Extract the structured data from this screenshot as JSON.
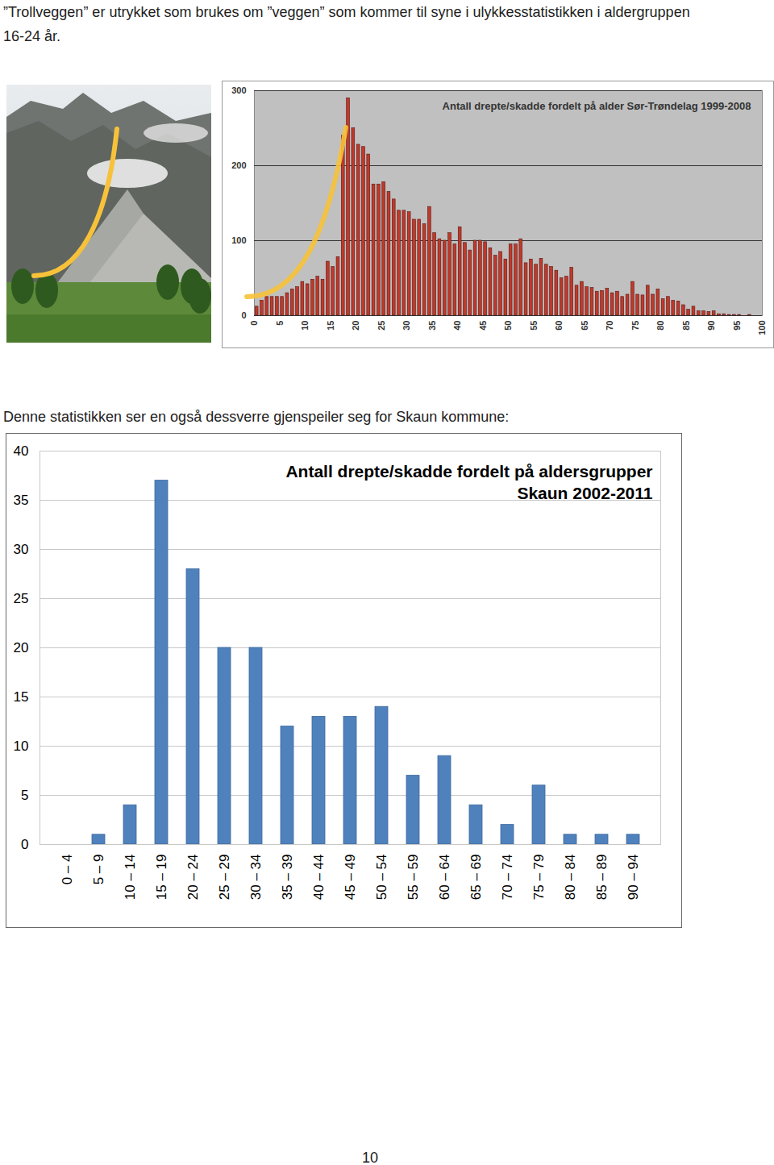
{
  "document": {
    "intro": "”Trollveggen” er utrykket som brukes om ”veggen” som kommer til syne i ulykkesstatistikken i aldergruppen 16-24 år.",
    "caption": "Denne statistikken ser en også dessverre gjenspeiler seg for Skaun kommune:",
    "page_number": "10"
  },
  "chart_data": [
    {
      "type": "bar",
      "title": "Antall drepte/skadde fordelt på alder Sør-Trøndelag 1999-2008",
      "x": [
        0,
        1,
        2,
        3,
        4,
        5,
        6,
        7,
        8,
        9,
        10,
        11,
        12,
        13,
        14,
        15,
        16,
        17,
        18,
        19,
        20,
        21,
        22,
        23,
        24,
        25,
        26,
        27,
        28,
        29,
        30,
        31,
        32,
        33,
        34,
        35,
        36,
        37,
        38,
        39,
        40,
        41,
        42,
        43,
        44,
        45,
        46,
        47,
        48,
        49,
        50,
        51,
        52,
        53,
        54,
        55,
        56,
        57,
        58,
        59,
        60,
        61,
        62,
        63,
        64,
        65,
        66,
        67,
        68,
        69,
        70,
        71,
        72,
        73,
        74,
        75,
        76,
        77,
        78,
        79,
        80,
        81,
        82,
        83,
        84,
        85,
        86,
        87,
        88,
        89,
        90,
        91,
        92,
        93,
        94,
        95,
        96,
        97
      ],
      "values": [
        12,
        20,
        25,
        25,
        25,
        25,
        30,
        35,
        38,
        45,
        42,
        48,
        52,
        48,
        72,
        65,
        78,
        240,
        290,
        250,
        228,
        225,
        215,
        175,
        175,
        178,
        165,
        155,
        140,
        140,
        138,
        128,
        128,
        122,
        145,
        110,
        102,
        100,
        110,
        95,
        118,
        97,
        87,
        100,
        100,
        98,
        90,
        80,
        85,
        75,
        95,
        95,
        102,
        70,
        75,
        68,
        76,
        68,
        65,
        60,
        50,
        52,
        64,
        40,
        45,
        38,
        37,
        32,
        33,
        36,
        30,
        32,
        25,
        28,
        45,
        28,
        27,
        40,
        28,
        35,
        22,
        25,
        20,
        19,
        14,
        8,
        12,
        6,
        6,
        5,
        6,
        2,
        2,
        1,
        1,
        1,
        0,
        1
      ],
      "color": "#c0392b",
      "xlim": [
        0,
        100
      ],
      "xticks": [
        0,
        5,
        10,
        15,
        20,
        25,
        30,
        35,
        40,
        45,
        50,
        55,
        60,
        65,
        70,
        75,
        80,
        85,
        90,
        95,
        100
      ],
      "ylim": [
        0,
        300
      ],
      "yticks": [
        0,
        100,
        200,
        300
      ],
      "grid": true
    },
    {
      "type": "bar",
      "title": "Antall drepte/skadde fordelt på aldersgrupper",
      "subtitle": "Skaun 2002-2011",
      "categories": [
        "0 – 4",
        "5 – 9",
        "10 – 14",
        "15 – 19",
        "20 – 24",
        "25 – 29",
        "30 – 34",
        "35 – 39",
        "40 – 44",
        "45 – 49",
        "50 – 54",
        "55 – 59",
        "60 – 64",
        "65 – 69",
        "70 – 74",
        "75 – 79",
        "80 – 84",
        "85 – 89",
        "90 – 94"
      ],
      "values": [
        0,
        1,
        4,
        37,
        28,
        20,
        20,
        12,
        13,
        13,
        14,
        7,
        9,
        4,
        2,
        6,
        1,
        1,
        1
      ],
      "color": "#4f81bd",
      "ylim": [
        0,
        40
      ],
      "yticks": [
        0,
        5,
        10,
        15,
        20,
        25,
        30,
        35,
        40
      ],
      "grid": true
    }
  ]
}
